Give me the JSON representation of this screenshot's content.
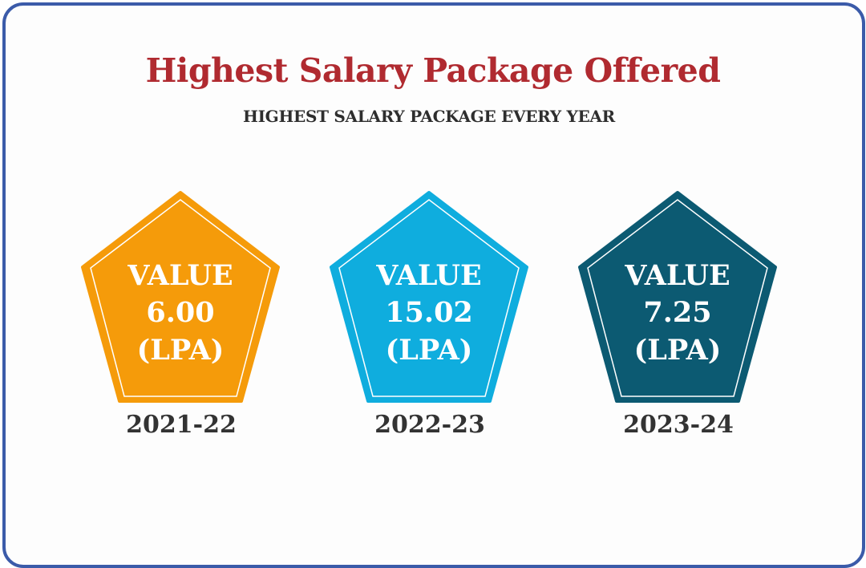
{
  "title": "Highest Salary Package Offered",
  "subtitle": "HIGHEST SALARY PACKAGE EVERY YEAR",
  "chart_data": {
    "type": "pentagon-infographic",
    "title": "Highest Salary Package Offered",
    "subtitle": "HIGHEST SALARY PACKAGE EVERY YEAR",
    "categories": [
      "2021-22",
      "2022-23",
      "2023-24"
    ],
    "values": [
      6.0,
      15.02,
      7.25
    ],
    "series": [
      {
        "values": [
          6.0,
          15.02,
          7.25
        ]
      }
    ],
    "items": [
      {
        "year": "2021-22",
        "label_top": "VALUE",
        "value_text": "6.00",
        "unit_text": "(LPA)",
        "color": "#f59b0a"
      },
      {
        "year": "2022-23",
        "label_top": "VALUE",
        "value_text": "15.02",
        "unit_text": "(LPA)",
        "color": "#0fadde"
      },
      {
        "year": "2023-24",
        "label_top": "VALUE",
        "value_text": "7.25",
        "unit_text": "(LPA)",
        "color": "#0c5a72"
      }
    ]
  }
}
